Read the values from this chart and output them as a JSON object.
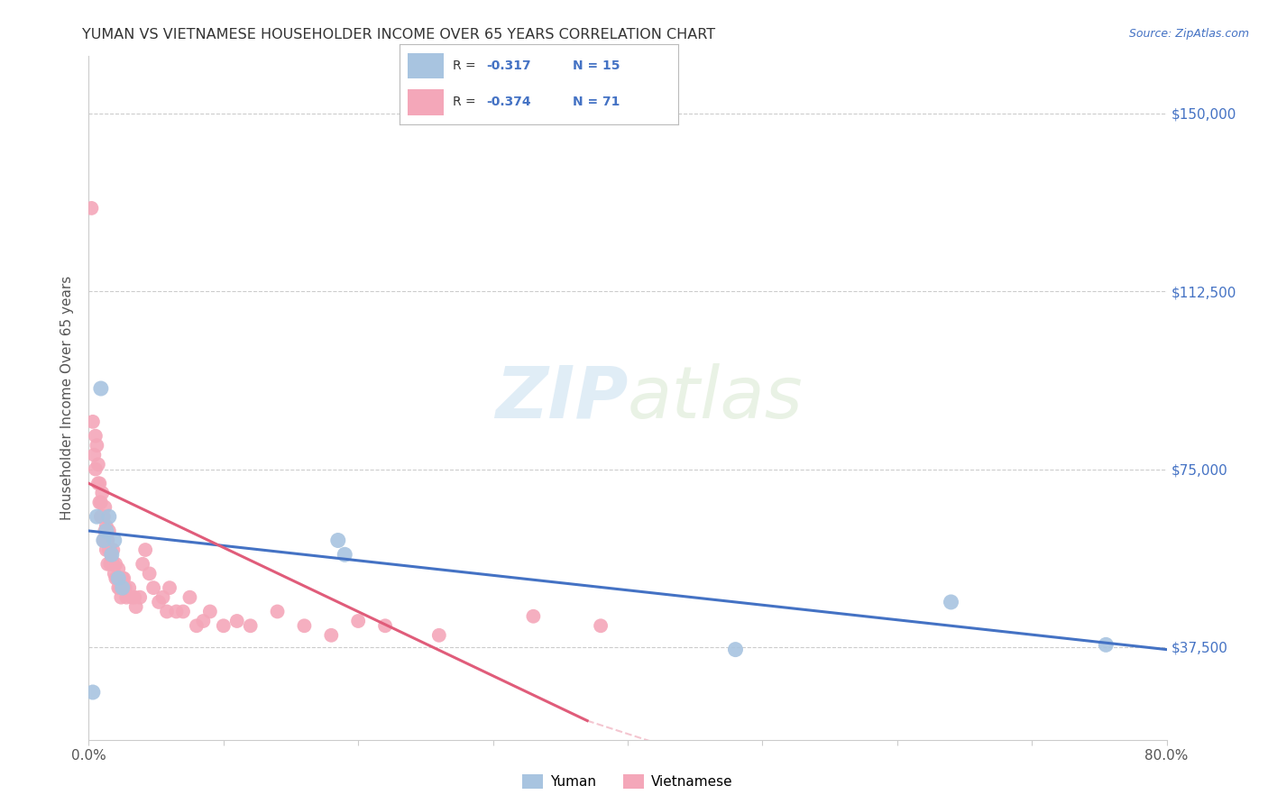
{
  "title": "YUMAN VS VIETNAMESE HOUSEHOLDER INCOME OVER 65 YEARS CORRELATION CHART",
  "source": "Source: ZipAtlas.com",
  "ylabel": "Householder Income Over 65 years",
  "yuman_R": -0.317,
  "yuman_N": 15,
  "vietnamese_R": -0.374,
  "vietnamese_N": 71,
  "xlim": [
    0.0,
    0.8
  ],
  "ylim": [
    18000,
    162000
  ],
  "yticks": [
    37500,
    75000,
    112500,
    150000
  ],
  "ytick_labels": [
    "$37,500",
    "$75,000",
    "$112,500",
    "$150,000"
  ],
  "xticks": [
    0.0,
    0.1,
    0.2,
    0.3,
    0.4,
    0.5,
    0.6,
    0.7,
    0.8
  ],
  "xtick_labels": [
    "0.0%",
    "",
    "",
    "",
    "",
    "",
    "",
    "",
    "80.0%"
  ],
  "yuman_color": "#a8c4e0",
  "vietnamese_color": "#f4a7b9",
  "yuman_line_color": "#4472c4",
  "vietnamese_line_color": "#e05c7a",
  "background_color": "#ffffff",
  "grid_color": "#cccccc",
  "watermark": "ZIPatlas",
  "yuman_x": [
    0.003,
    0.006,
    0.009,
    0.011,
    0.013,
    0.015,
    0.017,
    0.019,
    0.022,
    0.025,
    0.185,
    0.19,
    0.48,
    0.64,
    0.755
  ],
  "yuman_y": [
    28000,
    65000,
    92000,
    60000,
    62000,
    65000,
    57000,
    60000,
    52000,
    50000,
    60000,
    57000,
    37000,
    47000,
    38000
  ],
  "vietnamese_x": [
    0.002,
    0.003,
    0.004,
    0.005,
    0.005,
    0.006,
    0.007,
    0.007,
    0.008,
    0.008,
    0.009,
    0.009,
    0.01,
    0.01,
    0.011,
    0.011,
    0.012,
    0.012,
    0.013,
    0.013,
    0.014,
    0.014,
    0.015,
    0.015,
    0.016,
    0.016,
    0.017,
    0.018,
    0.018,
    0.019,
    0.02,
    0.02,
    0.021,
    0.022,
    0.022,
    0.023,
    0.024,
    0.025,
    0.026,
    0.027,
    0.028,
    0.03,
    0.032,
    0.034,
    0.035,
    0.038,
    0.04,
    0.042,
    0.045,
    0.048,
    0.052,
    0.055,
    0.058,
    0.06,
    0.065,
    0.07,
    0.075,
    0.08,
    0.085,
    0.09,
    0.1,
    0.11,
    0.12,
    0.14,
    0.16,
    0.18,
    0.2,
    0.22,
    0.26,
    0.33,
    0.38
  ],
  "vietnamese_y": [
    130000,
    85000,
    78000,
    75000,
    82000,
    80000,
    76000,
    72000,
    72000,
    68000,
    68000,
    65000,
    65000,
    70000,
    65000,
    60000,
    62000,
    67000,
    63000,
    58000,
    60000,
    55000,
    62000,
    58000,
    58000,
    55000,
    56000,
    55000,
    58000,
    53000,
    55000,
    52000,
    52000,
    54000,
    50000,
    50000,
    48000,
    52000,
    52000,
    50000,
    48000,
    50000,
    48000,
    48000,
    46000,
    48000,
    55000,
    58000,
    53000,
    50000,
    47000,
    48000,
    45000,
    50000,
    45000,
    45000,
    48000,
    42000,
    43000,
    45000,
    42000,
    43000,
    42000,
    45000,
    42000,
    40000,
    43000,
    42000,
    40000,
    44000,
    42000
  ]
}
